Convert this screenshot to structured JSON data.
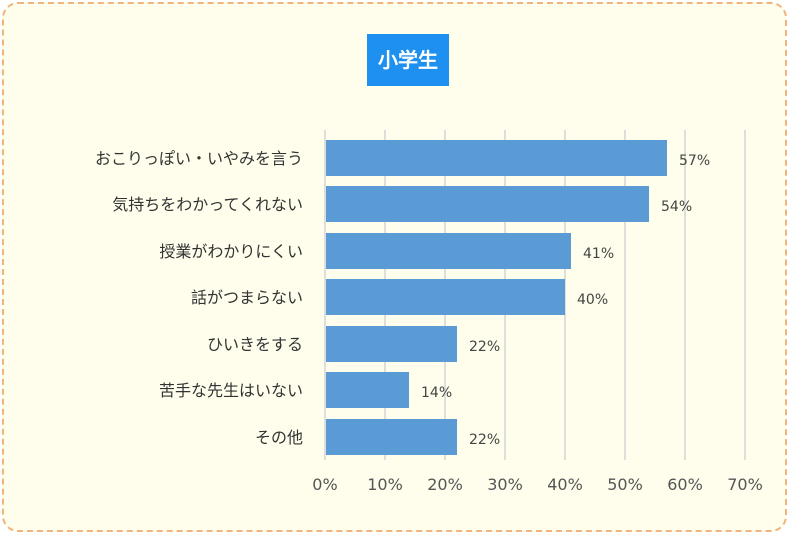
{
  "title": "小学生",
  "chart_data": {
    "type": "bar",
    "orientation": "horizontal",
    "title": "小学生",
    "categories": [
      "おこりっぽい・いやみを言う",
      "気持ちをわかってくれない",
      "授業がわかりにくい",
      "話がつまらない",
      "ひいきをする",
      "苦手な先生はいない",
      "その他"
    ],
    "values": [
      57,
      54,
      41,
      40,
      22,
      14,
      22
    ],
    "value_labels": [
      "57%",
      "54%",
      "41%",
      "40%",
      "22%",
      "14%",
      "22%"
    ],
    "xlim": [
      0,
      70
    ],
    "xticks": [
      "0%",
      "10%",
      "20%",
      "30%",
      "40%",
      "50%",
      "60%",
      "70%"
    ],
    "grid": "vertical",
    "bar_color": "#5b9bd5",
    "title_bg_color": "#1e90ef",
    "card_bg_color": "#fffeec",
    "card_border_color": "#f2b47d"
  }
}
